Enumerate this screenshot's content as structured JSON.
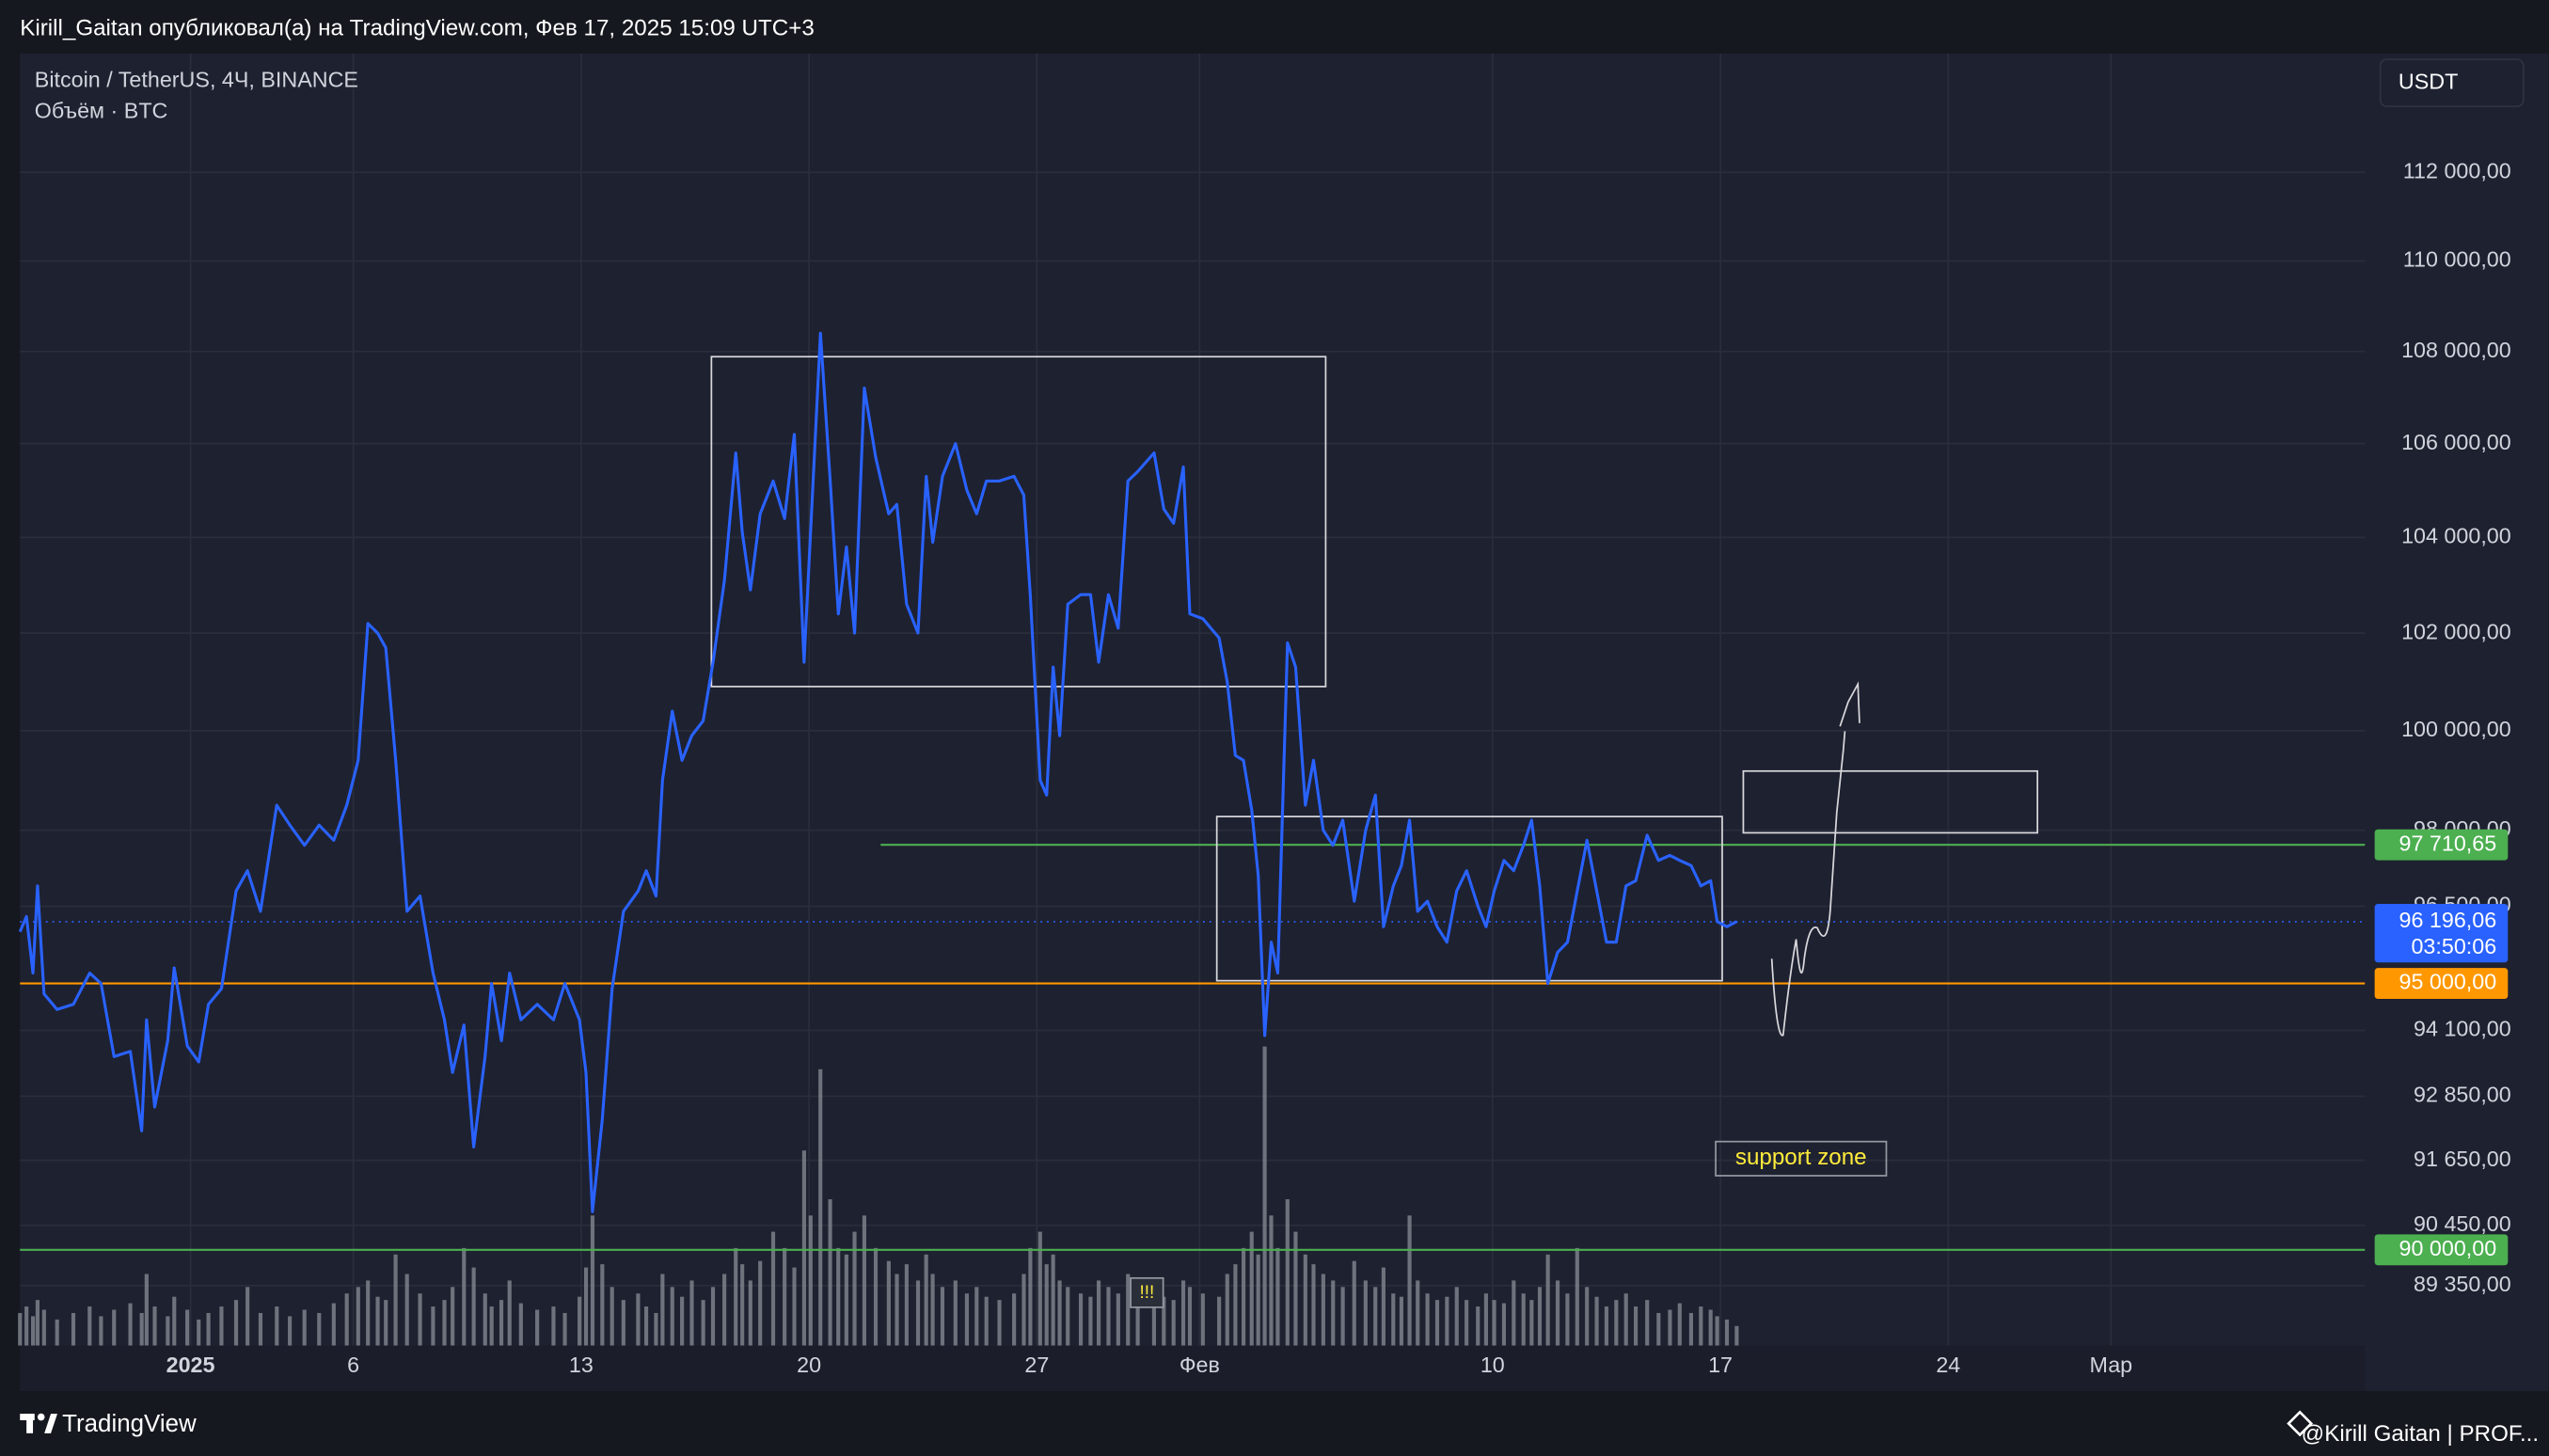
{
  "header": {
    "publisher_line": "Kirill_Gaitan опубликовал(а) на TradingView.com, Фев 17, 2025 15:09 UTC+3"
  },
  "currency_button": "USDT",
  "footer": {
    "brand": "TradingView",
    "author": "@Kirill Gaitan | PROF..."
  },
  "chart_data": {
    "type": "line",
    "title": "Bitcoin / TetherUS, 4Ч, BINANCE",
    "subtitle": "Объём · BTC",
    "log_scale": true,
    "grid": true,
    "x": [
      -4.24,
      -4.04,
      -3.84,
      -3.7,
      -3.5,
      -3.1,
      -2.6,
      -2.1,
      -1.75,
      -1.35,
      -0.85,
      -0.5,
      -0.35,
      -0.1,
      0.3,
      0.5,
      0.9,
      1.25,
      1.55,
      1.95,
      2.4,
      2.75,
      3.15,
      3.65,
      4.05,
      4.5,
      4.95,
      5.4,
      5.8,
      6.15,
      6.45,
      6.75,
      7.0,
      7.3,
      7.65,
      8.05,
      8.45,
      8.8,
      9.05,
      9.4,
      9.7,
      10.05,
      10.25,
      10.55,
      10.8,
      11.15,
      11.65,
      12.15,
      12.5,
      12.95,
      13.15,
      13.35,
      13.65,
      13.95,
      14.3,
      14.75,
      15.0,
      15.3,
      15.5,
      15.8,
      16.1,
      16.4,
      16.75,
      17.05,
      17.4,
      17.75,
      17.95,
      18.2,
      18.5,
      18.9,
      19.25,
      19.55,
      19.85,
      20.05,
      20.35,
      20.65,
      20.9,
      21.15,
      21.4,
      21.7,
      22.05,
      22.45,
      22.7,
      23.0,
      23.35,
      23.6,
      23.8,
      24.1,
      24.5,
      24.85,
      25.15,
      25.45,
      25.85,
      26.3,
      26.6,
      26.8,
      27.1,
      27.3,
      27.5,
      27.7,
      27.95,
      28.35,
      28.65,
      28.9,
      29.2,
      29.5,
      29.8,
      30.1,
      30.6,
      30.9,
      31.2,
      31.5,
      31.7,
      32.1,
      32.6,
      32.85,
      33.1,
      33.35,
      33.6,
      33.8,
      34.0,
      34.2,
      34.4,
      34.7,
      34.95,
      35.25,
      35.5,
      35.8,
      36.1,
      36.4,
      36.75,
      37.1,
      37.4,
      37.65,
      37.95,
      38.2,
      38.45,
      38.7,
      39.0,
      39.3,
      39.6,
      39.9,
      40.2,
      40.55,
      40.8,
      41.05,
      41.35,
      41.65,
      41.95,
      42.2,
      42.45,
      42.7,
      43.0,
      43.3,
      43.6,
      43.9,
      44.2,
      44.5,
      44.8,
      45.1,
      45.4,
      45.75,
      46.1,
      46.45,
      46.75,
      47.1,
      47.4,
      47.7,
      47.9,
      48.2,
      48.5
    ],
    "series": [
      {
        "color": "#2962ff",
        "values": [
          96000,
          96300,
          95200,
          96900,
          94800,
          94500,
          94600,
          95200,
          95000,
          93600,
          93700,
          92200,
          94300,
          92650,
          93900,
          95300,
          93800,
          93500,
          94600,
          94900,
          96800,
          97200,
          96400,
          98500,
          98100,
          97700,
          98100,
          97800,
          98500,
          99400,
          102200,
          102000,
          101700,
          99400,
          96400,
          96700,
          95200,
          94300,
          93300,
          94200,
          91900,
          93600,
          95000,
          93900,
          95200,
          94300,
          94600,
          94300,
          95000,
          94300,
          93300,
          90700,
          92400,
          94900,
          96400,
          96800,
          97200,
          96700,
          99000,
          100400,
          99400,
          99900,
          100200,
          101400,
          103100,
          105800,
          104100,
          102900,
          104500,
          105200,
          104400,
          106200,
          101400,
          104100,
          108400,
          105200,
          102400,
          103800,
          102000,
          107200,
          105700,
          104500,
          104700,
          102600,
          102000,
          105300,
          103900,
          105300,
          106000,
          105000,
          104500,
          105200,
          105200,
          105300,
          104900,
          102800,
          99000,
          98700,
          101300,
          99900,
          102600,
          102800,
          102800,
          101400,
          102800,
          102100,
          105200,
          105400,
          105800,
          104600,
          104300,
          105500,
          102400,
          102300,
          101900,
          101000,
          99500,
          99400,
          98400,
          97100,
          94000,
          95800,
          95200,
          101800,
          101300,
          98500,
          99400,
          98000,
          97700,
          98200,
          96600,
          98000,
          98700,
          96100,
          96900,
          97300,
          98200,
          96400,
          96600,
          96100,
          95800,
          96800,
          97200,
          96500,
          96100,
          96800,
          97400,
          97200,
          97700,
          98200,
          96900,
          95000,
          95600,
          95800,
          96800,
          97800,
          96800,
          95800,
          95800,
          96900,
          97000,
          97900,
          97400,
          97500,
          97400,
          97300,
          96900,
          97000,
          96200,
          96100,
          96200
        ]
      }
    ],
    "volume": {
      "color": "#8a8d96",
      "ylim": [
        0,
        100
      ],
      "values": [
        10,
        12,
        9,
        14,
        11,
        8,
        10,
        12,
        9,
        11,
        13,
        10,
        22,
        12,
        9,
        15,
        11,
        8,
        10,
        12,
        14,
        18,
        10,
        12,
        9,
        11,
        10,
        13,
        16,
        18,
        20,
        15,
        14,
        28,
        22,
        16,
        12,
        14,
        18,
        30,
        24,
        16,
        12,
        14,
        20,
        13,
        11,
        12,
        10,
        15,
        24,
        40,
        25,
        18,
        14,
        16,
        12,
        10,
        22,
        18,
        15,
        20,
        14,
        18,
        22,
        30,
        25,
        20,
        26,
        35,
        30,
        24,
        60,
        40,
        85,
        45,
        30,
        28,
        35,
        40,
        30,
        26,
        22,
        25,
        20,
        28,
        22,
        18,
        20,
        16,
        18,
        15,
        14,
        16,
        22,
        30,
        35,
        25,
        28,
        20,
        18,
        16,
        15,
        20,
        18,
        16,
        22,
        14,
        12,
        15,
        14,
        20,
        18,
        16,
        15,
        22,
        25,
        30,
        35,
        28,
        92,
        40,
        30,
        45,
        35,
        28,
        25,
        22,
        20,
        18,
        26,
        20,
        18,
        24,
        16,
        15,
        40,
        20,
        16,
        14,
        15,
        18,
        14,
        12,
        16,
        14,
        13,
        20,
        16,
        14,
        18,
        28,
        20,
        16,
        30,
        18,
        15,
        12,
        14,
        16,
        12,
        14,
        10,
        11,
        13,
        10,
        12,
        11,
        9,
        8,
        6
      ]
    },
    "xlim": [
      -4.24,
      67.8
    ],
    "xticks": [
      {
        "value": 1,
        "label": "2025"
      },
      6,
      13,
      20,
      27,
      {
        "value": 32,
        "label": "Фев"
      },
      {
        "value": 41,
        "label": "10"
      },
      {
        "value": 48,
        "label": "17"
      },
      {
        "value": 55,
        "label": "24"
      },
      {
        "value": 60,
        "label": "Мар"
      }
    ],
    "ylim": [
      88270,
      114730
    ],
    "yticks": [
      {
        "value": 112000,
        "label": "112 000,00"
      },
      {
        "value": 110000,
        "label": "110 000,00"
      },
      {
        "value": 108000,
        "label": "108 000,00"
      },
      {
        "value": 106000,
        "label": "106 000,00"
      },
      {
        "value": 104000,
        "label": "104 000,00"
      },
      {
        "value": 102000,
        "label": "102 000,00"
      },
      {
        "value": 100000,
        "label": "100 000,00"
      },
      {
        "value": 98000,
        "label": "98 000,00"
      },
      {
        "value": 96500,
        "label": "96 500,00"
      },
      {
        "value": 94100,
        "label": "94 100,00"
      },
      {
        "value": 92850,
        "label": "92 850,00"
      },
      {
        "value": 91650,
        "label": "91 650,00"
      },
      {
        "value": 90450,
        "label": "90 450,00"
      },
      {
        "value": 89350,
        "label": "89 350,00"
      }
    ],
    "levels": [
      {
        "value": 97710.65,
        "label": "97 710,65",
        "color": "#4caf50",
        "from": 22.2
      },
      {
        "value": 95000,
        "label": "95 000,00",
        "color": "#ff9800"
      },
      {
        "value": 90000,
        "label": "90 000,00",
        "color": "#4caf50"
      }
    ],
    "last_price": {
      "value": 96196.06,
      "label": "96 196,06",
      "countdown": "03:50:06",
      "color": "#2962ff"
    },
    "annotations": {
      "support": "support zone",
      "marker": "!!!"
    }
  }
}
